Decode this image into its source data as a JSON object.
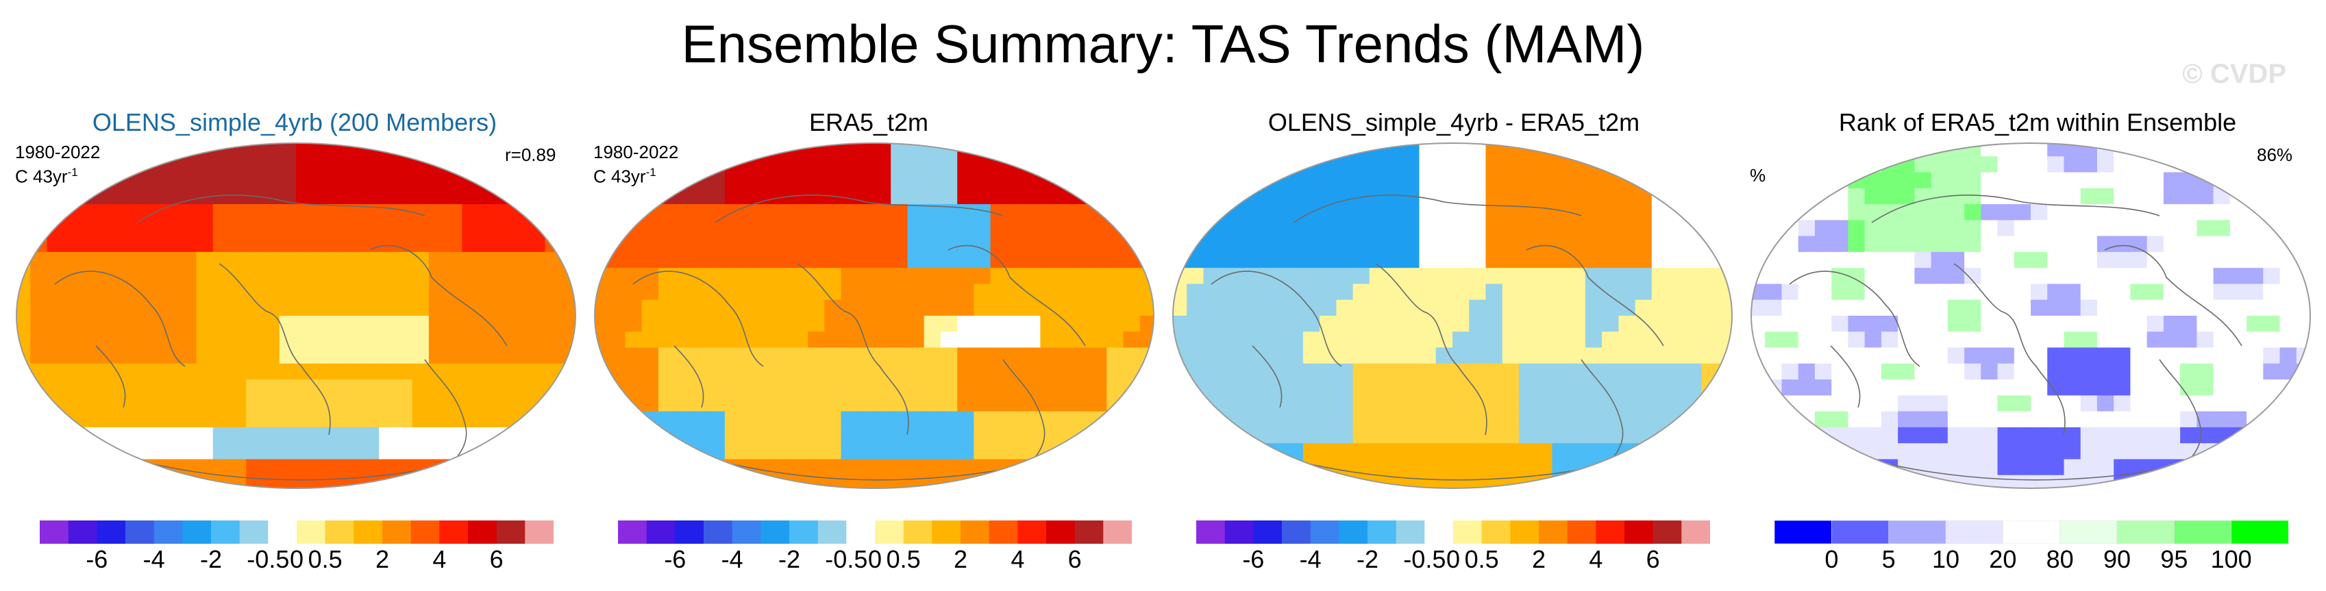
{
  "title": "Ensemble Summary: TAS Trends (MAM)",
  "copyright": "© CVDP",
  "colors": {
    "trend_scale": [
      "#8a2be2",
      "#4b16e0",
      "#2020e8",
      "#3c5ce6",
      "#3c82f0",
      "#1e9ef0",
      "#4bbcf5",
      "#96d2ea",
      "#ffffff",
      "#fff59a",
      "#ffd23c",
      "#ffb400",
      "#ff8c00",
      "#ff5a00",
      "#ff1e00",
      "#d80000",
      "#b22222",
      "#f0a0a0"
    ],
    "rank_scale": [
      "#0000ff",
      "#6262ff",
      "#aaaaff",
      "#e6e6ff",
      "#ffffff",
      "#e6ffe6",
      "#b4ffb4",
      "#78ff78",
      "#00ff00"
    ],
    "land_outline": "#6a6a6a",
    "title_blue": "#1a6aa0"
  },
  "chart_data": [
    {
      "type": "heatmap",
      "title": "OLENS_simple_4yrb (200 Members)",
      "period": "1980-2022",
      "units_line": [
        "C 43yr",
        "-1"
      ],
      "pattern_correlation": "r=0.89",
      "pattern": "ens",
      "colorbar_ticks": [
        "-6",
        "-4",
        "-2",
        "-0.5",
        "0",
        "0.5",
        "2",
        "4",
        "6"
      ]
    },
    {
      "type": "heatmap",
      "title": "ERA5_t2m",
      "period": "1980-2022",
      "units_line": [
        "C 43yr",
        "-1"
      ],
      "pattern": "obs",
      "colorbar_ticks": [
        "-6",
        "-4",
        "-2",
        "-0.5",
        "0",
        "0.5",
        "2",
        "4",
        "6"
      ]
    },
    {
      "type": "heatmap",
      "title": "OLENS_simple_4yrb - ERA5_t2m",
      "pattern": "diff",
      "colorbar_ticks": [
        "-6",
        "-4",
        "-2",
        "-0.5",
        "0",
        "0.5",
        "2",
        "4",
        "6"
      ]
    },
    {
      "type": "heatmap",
      "title": "Rank of ERA5_t2m within Ensemble",
      "left_label": "%",
      "right_label": "86%",
      "pattern": "rank",
      "colorbar_ticks": [
        "0",
        "5",
        "10",
        "20",
        "80",
        "90",
        "95",
        "100"
      ]
    }
  ]
}
